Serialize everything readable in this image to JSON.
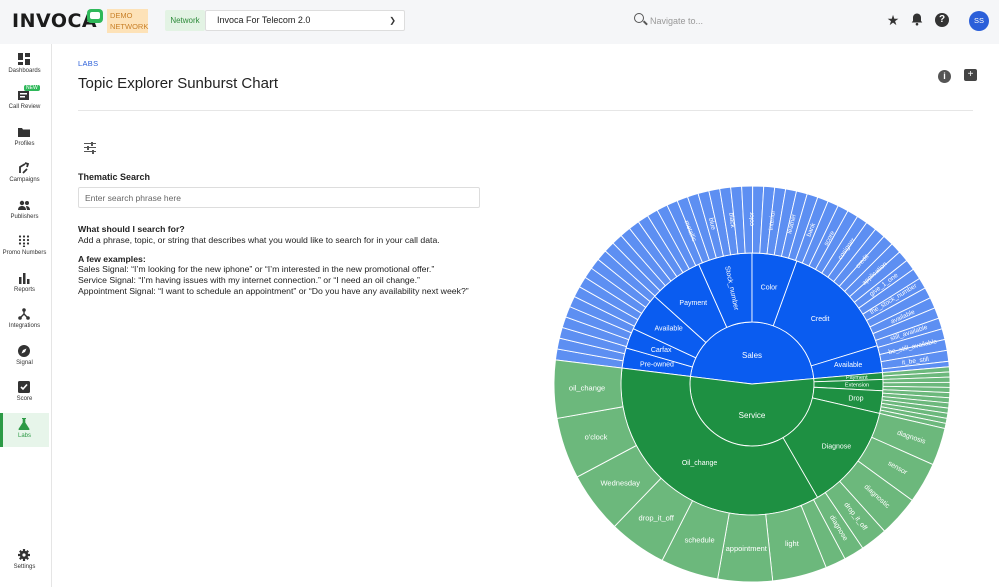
{
  "brand": {
    "logo_text": "INVOCA",
    "badge_line1": "DEMO",
    "badge_line2": "NETWORK"
  },
  "topbar": {
    "network_label": "Network",
    "network_value": "Invoca For Telecom 2.0",
    "search_placeholder": "Navigate to...",
    "avatar_initials": "SS"
  },
  "sidebar": {
    "items": [
      {
        "label": "Dashboards",
        "icon": "grid-icon"
      },
      {
        "label": "Call Review",
        "icon": "call-review-icon",
        "badge": "NEW"
      },
      {
        "label": "Profiles",
        "icon": "folder-icon"
      },
      {
        "label": "Campaigns",
        "icon": "route-icon"
      },
      {
        "label": "Publishers",
        "icon": "people-icon"
      },
      {
        "label": "Promo Numbers",
        "icon": "keypad-icon"
      },
      {
        "label": "Reports",
        "icon": "bar-chart-icon"
      },
      {
        "label": "Integrations",
        "icon": "network-icon"
      },
      {
        "label": "Signal",
        "icon": "compass-icon"
      },
      {
        "label": "Score",
        "icon": "checkbox-icon"
      },
      {
        "label": "Labs",
        "icon": "flask-icon",
        "active": true
      }
    ],
    "settings_label": "Settings"
  },
  "page": {
    "breadcrumb": "LABS",
    "title": "Topic Explorer Sunburst Chart",
    "thematic_label": "Thematic Search",
    "search_placeholder": "Enter search phrase here",
    "what_heading": "What should I search for?",
    "what_text": "Add a phrase, topic, or string that describes what you would like to search for in your call data.",
    "examples_heading": "A few examples:",
    "examples": [
      "Sales Signal: “I’m looking for the new iphone” or “I’m interested in the new promotional offer.”",
      "Service Signal: “I’m having issues with my internet connection.” or “I need an oil change.”",
      "Appointment Signal: “I want to schedule an appointment” or “Do you have any availability next week?”"
    ]
  },
  "colors": {
    "sales_inner": "#0a5cf0",
    "sales_outer": "#5d8ff2",
    "service_inner": "#1e9042",
    "service_outer": "#6cb87c",
    "accent_green": "#2d9a46",
    "link_blue": "#2b5fd9"
  },
  "chart_data": {
    "type": "sunburst",
    "root": [
      {
        "name": "Sales",
        "children": [
          {
            "name": "Credit",
            "children": [
              "credit",
              "application",
              "give_1_one",
              "the_stock_number",
              "available"
            ]
          },
          {
            "name": "Available",
            "children": [
              "still_available",
              "be_still_available",
              "it_be_still"
            ]
          },
          {
            "name": "Pre-owned",
            "children": []
          },
          {
            "name": "Carfax",
            "children": []
          },
          {
            "name": "Available",
            "children": []
          },
          {
            "name": "Payment",
            "children": []
          },
          {
            "name": "Stock_number",
            "children": [
              "metallic",
              "blue",
              "black",
              "color",
              "interior"
            ]
          },
          {
            "name": "Color",
            "children": [
              "leather",
              "bank",
              "score",
              "cosigner"
            ]
          }
        ]
      },
      {
        "name": "Service",
        "children": [
          {
            "name": "Payment",
            "children": []
          },
          {
            "name": "Extension",
            "children": []
          },
          {
            "name": "Drop",
            "children": []
          },
          {
            "name": "Diagnose",
            "children": [
              "diagnosis",
              "sensor",
              "diagnostic",
              "drop_it_off",
              "diagnose"
            ]
          },
          {
            "name": "Oil_change",
            "children": [
              "light",
              "appointment",
              "schedule",
              "drop_it_off",
              "Wednesday",
              "o'clock",
              "oil_change"
            ]
          }
        ]
      }
    ]
  }
}
